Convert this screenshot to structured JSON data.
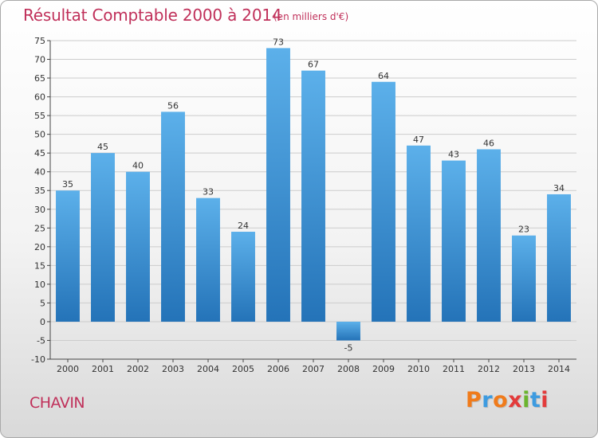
{
  "title": "Résultat Comptable 2000 à 2014",
  "subtitle": "(en milliers d'€)",
  "commune": "CHAVIN",
  "logo": {
    "letters": [
      "P",
      "r",
      "o",
      "x",
      "i",
      "t",
      "i"
    ],
    "colors": [
      "#f07b1b",
      "#3d9be0",
      "#f07b1b",
      "#e33b3b",
      "#6bb52e",
      "#3d9be0",
      "#e33b3b"
    ]
  },
  "colors": {
    "title": "#c0305a",
    "bar_top": "#5cb0ea",
    "bar_bottom": "#2473b8",
    "grid": "#cccccc"
  },
  "chart_data": {
    "type": "bar",
    "title": "Résultat Comptable 2000 à 2014",
    "subtitle": "(en milliers d'€)",
    "xlabel": "",
    "ylabel": "",
    "categories": [
      "2000",
      "2001",
      "2002",
      "2003",
      "2004",
      "2005",
      "2006",
      "2007",
      "2008",
      "2009",
      "2010",
      "2011",
      "2012",
      "2013",
      "2014"
    ],
    "values": [
      35,
      45,
      40,
      56,
      33,
      24,
      73,
      67,
      -5,
      64,
      47,
      43,
      46,
      23,
      34
    ],
    "value_labels": [
      "35",
      "45",
      "40",
      "56",
      "33",
      "24",
      "73",
      "67",
      "-5",
      "64",
      "47",
      "43",
      "46",
      "23",
      "34"
    ],
    "ylim": [
      -10,
      75
    ],
    "yticks": [
      75,
      70,
      65,
      60,
      55,
      50,
      45,
      40,
      35,
      30,
      25,
      20,
      15,
      10,
      5,
      0,
      -5,
      -10
    ],
    "grid": true,
    "legend": "none"
  }
}
